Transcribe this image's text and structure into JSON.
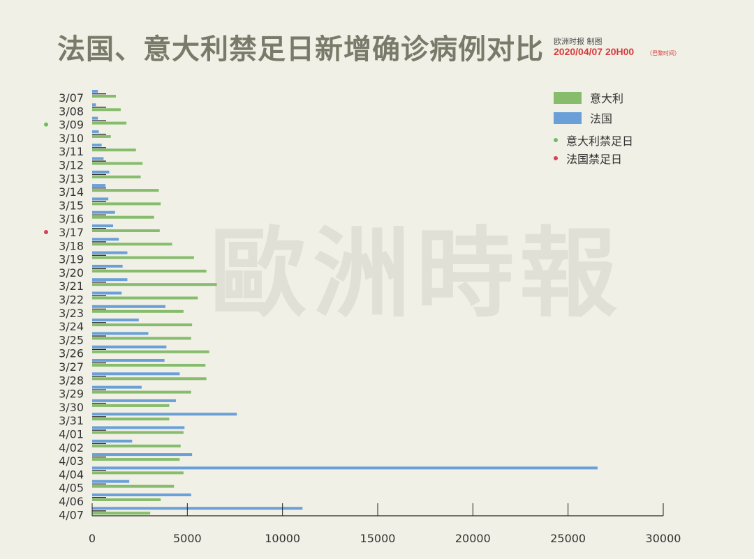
{
  "header": {
    "title": "法国、意大利禁足日新增确诊病例对比",
    "credit": "欧洲时报 制图",
    "timestamp": "2020/04/07 20H00",
    "timestamp_note": "（巴黎时间）"
  },
  "watermark": "歐洲時報",
  "colors": {
    "italy": "#86bc6c",
    "france": "#6a9fd8",
    "italy_lockdown": "#6cbf5f",
    "france_lockdown": "#d6405a",
    "background": "#f0f0e6"
  },
  "legend": {
    "italy": "意大利",
    "france": "法国",
    "italy_lockdown": "意大利禁足日",
    "france_lockdown": "法国禁足日"
  },
  "chart_data": {
    "type": "bar",
    "orientation": "horizontal",
    "categories": [
      "3/07",
      "3/08",
      "3/09",
      "3/10",
      "3/11",
      "3/12",
      "3/13",
      "3/14",
      "3/15",
      "3/16",
      "3/17",
      "3/18",
      "3/19",
      "3/20",
      "3/21",
      "3/22",
      "3/23",
      "3/24",
      "3/25",
      "3/26",
      "3/27",
      "3/28",
      "3/29",
      "3/30",
      "3/31",
      "4/01",
      "4/02",
      "4/03",
      "4/04",
      "4/05",
      "4/06",
      "4/07"
    ],
    "series": [
      {
        "name": "法国",
        "values": [
          300,
          200,
          300,
          350,
          500,
          600,
          900,
          700,
          850,
          1200,
          1100,
          1400,
          1850,
          1600,
          1850,
          1550,
          3850,
          2450,
          2950,
          3900,
          3800,
          4600,
          2600,
          4400,
          7600,
          4850,
          2100,
          5250,
          26550,
          1950,
          5200,
          11050
        ]
      },
      {
        "name": "意大利",
        "values": [
          1250,
          1500,
          1800,
          980,
          2300,
          2650,
          2550,
          3500,
          3600,
          3250,
          3550,
          4200,
          5350,
          6000,
          6550,
          5550,
          4800,
          5250,
          5200,
          6150,
          5950,
          6000,
          5200,
          4050,
          4050,
          4800,
          4650,
          4600,
          4800,
          4300,
          3600,
          3050
        ]
      }
    ],
    "markers": {
      "italy_lockdown": "3/09",
      "france_lockdown": "3/17"
    },
    "xlim": [
      0,
      30000
    ],
    "xticks": [
      0,
      5000,
      10000,
      15000,
      20000,
      25000,
      30000
    ],
    "xlabel": "",
    "ylabel": "",
    "grid": false,
    "legend_position": "top-right"
  }
}
